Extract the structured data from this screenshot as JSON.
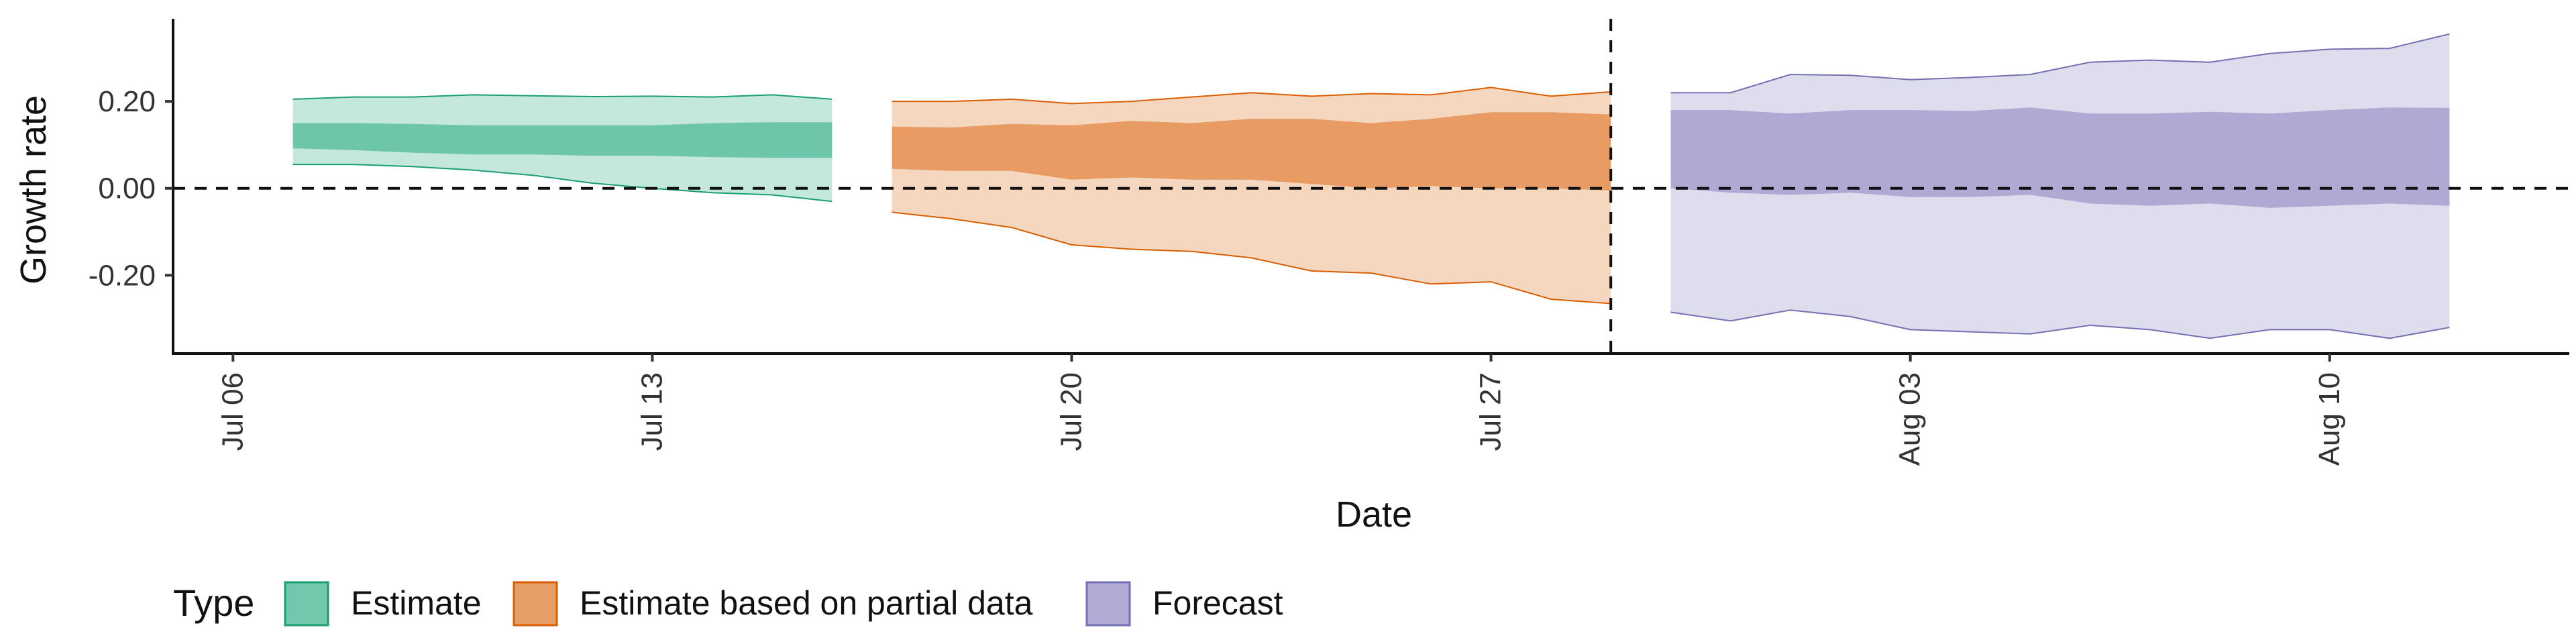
{
  "chart_data": {
    "type": "area",
    "xlabel": "Date",
    "ylabel": "Growth rate",
    "x_ticks": [
      "2020-07-06",
      "2020-07-13",
      "2020-07-20",
      "2020-07-27",
      "2020-08-03",
      "2020-08-10"
    ],
    "x_tick_labels": [
      "Jul 06",
      "Jul 13",
      "Jul 20",
      "Jul 27",
      "Aug 03",
      "Aug 10"
    ],
    "xlim": [
      "2020-07-05",
      "2020-08-14"
    ],
    "y_ticks": [
      0.2,
      0.0,
      -0.2
    ],
    "y_tick_labels": [
      "0.20",
      "0.00",
      "-0.20"
    ],
    "ylim": [
      -0.38,
      0.39
    ],
    "hline_y": 0,
    "vline_date": "2020-07-29",
    "grid": false,
    "legend": {
      "title": "Type",
      "position": "bottom-left",
      "items": [
        "Estimate",
        "Estimate based on partial data",
        "Forecast"
      ]
    },
    "series": [
      {
        "name": "Estimate",
        "fill": "#66c2a5",
        "stroke": "#1b9e77",
        "dates": [
          "2020-07-07",
          "2020-07-08",
          "2020-07-09",
          "2020-07-10",
          "2020-07-11",
          "2020-07-12",
          "2020-07-13",
          "2020-07-14",
          "2020-07-15",
          "2020-07-16"
        ],
        "outer_upper": [
          0.205,
          0.21,
          0.21,
          0.215,
          0.213,
          0.211,
          0.212,
          0.21,
          0.215,
          0.205
        ],
        "inner_upper": [
          0.15,
          0.15,
          0.148,
          0.145,
          0.145,
          0.145,
          0.145,
          0.15,
          0.152,
          0.152
        ],
        "inner_lower": [
          0.092,
          0.088,
          0.082,
          0.078,
          0.078,
          0.075,
          0.075,
          0.072,
          0.07,
          0.07
        ],
        "outer_lower": [
          0.055,
          0.055,
          0.05,
          0.042,
          0.03,
          0.012,
          0.0,
          -0.01,
          -0.015,
          -0.03
        ]
      },
      {
        "name": "Estimate based on partial data",
        "fill": "#e6965a",
        "stroke": "#d95f02",
        "dates": [
          "2020-07-17",
          "2020-07-18",
          "2020-07-19",
          "2020-07-20",
          "2020-07-21",
          "2020-07-22",
          "2020-07-23",
          "2020-07-24",
          "2020-07-25",
          "2020-07-26",
          "2020-07-27",
          "2020-07-28",
          "2020-07-29"
        ],
        "outer_upper": [
          0.2,
          0.2,
          0.205,
          0.195,
          0.2,
          0.21,
          0.22,
          0.212,
          0.218,
          0.215,
          0.232,
          0.212,
          0.222
        ],
        "inner_upper": [
          0.142,
          0.14,
          0.148,
          0.145,
          0.155,
          0.15,
          0.16,
          0.16,
          0.15,
          0.16,
          0.175,
          0.175,
          0.17
        ],
        "inner_lower": [
          0.045,
          0.04,
          0.04,
          0.02,
          0.025,
          0.02,
          0.02,
          0.01,
          0.0,
          0.005,
          0.0,
          0.0,
          -0.005
        ],
        "outer_lower": [
          -0.055,
          -0.07,
          -0.09,
          -0.13,
          -0.14,
          -0.145,
          -0.16,
          -0.19,
          -0.195,
          -0.22,
          -0.215,
          -0.255,
          -0.265
        ]
      },
      {
        "name": "Forecast",
        "fill": "#a9a5d1",
        "stroke": "#7570b3",
        "dates": [
          "2020-07-30",
          "2020-07-31",
          "2020-08-01",
          "2020-08-02",
          "2020-08-03",
          "2020-08-04",
          "2020-08-05",
          "2020-08-06",
          "2020-08-07",
          "2020-08-08",
          "2020-08-09",
          "2020-08-10",
          "2020-08-11",
          "2020-08-12"
        ],
        "outer_upper": [
          0.22,
          0.22,
          0.262,
          0.26,
          0.25,
          0.255,
          0.262,
          0.29,
          0.295,
          0.29,
          0.31,
          0.32,
          0.322,
          0.355
        ],
        "inner_upper": [
          0.18,
          0.18,
          0.172,
          0.18,
          0.18,
          0.178,
          0.186,
          0.172,
          0.172,
          0.176,
          0.172,
          0.18,
          0.186,
          0.185
        ],
        "inner_lower": [
          0.0,
          -0.01,
          -0.015,
          -0.01,
          -0.02,
          -0.02,
          -0.015,
          -0.035,
          -0.04,
          -0.035,
          -0.045,
          -0.04,
          -0.035,
          -0.04
        ],
        "outer_lower": [
          -0.285,
          -0.305,
          -0.28,
          -0.295,
          -0.325,
          -0.33,
          -0.335,
          -0.315,
          -0.325,
          -0.345,
          -0.325,
          -0.325,
          -0.345,
          -0.32
        ]
      }
    ]
  }
}
